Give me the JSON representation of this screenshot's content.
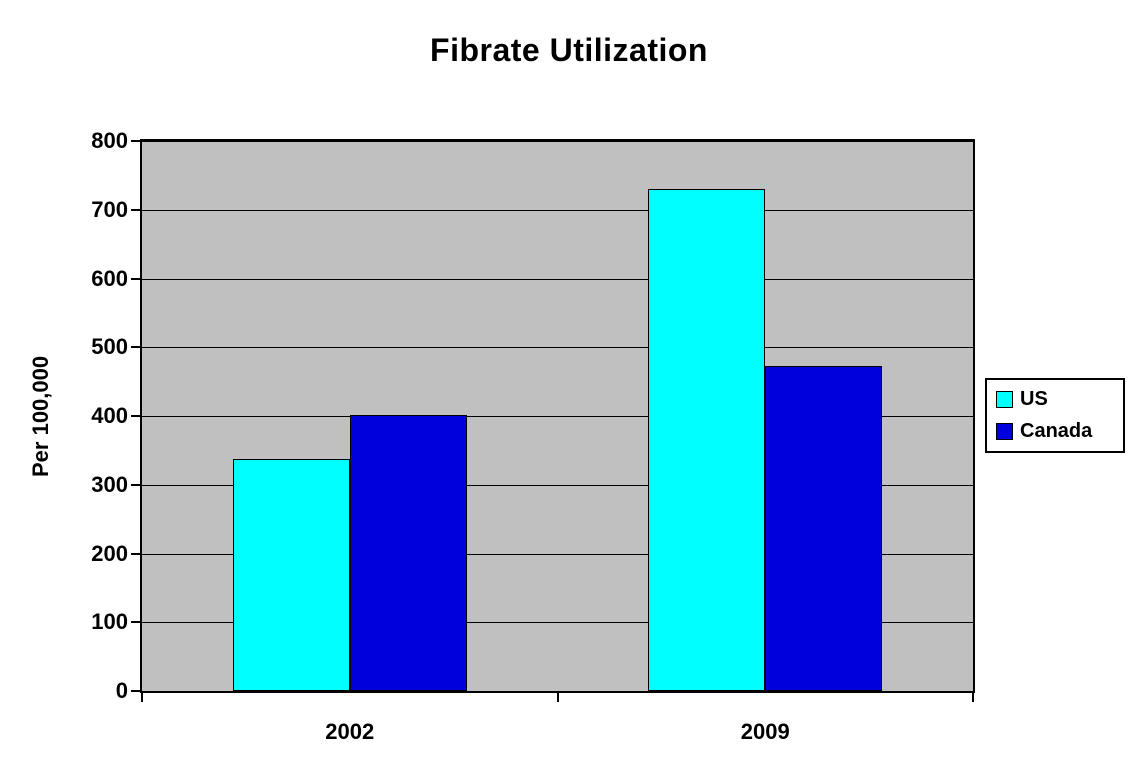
{
  "chart_data": {
    "type": "bar",
    "title": "Fibrate Utilization",
    "ylabel": "Per 100,000",
    "xlabel": "",
    "categories": [
      "2002",
      "2009"
    ],
    "series": [
      {
        "name": "US",
        "color": "#00FFFF",
        "values": [
          337,
          730
        ]
      },
      {
        "name": "Canada",
        "color": "#0000DD",
        "values": [
          402,
          473
        ]
      }
    ],
    "ylim": [
      0,
      800
    ],
    "ytick_step": 100,
    "grid": true,
    "legend_position": "right",
    "plot_background": "#C0C0C0"
  }
}
